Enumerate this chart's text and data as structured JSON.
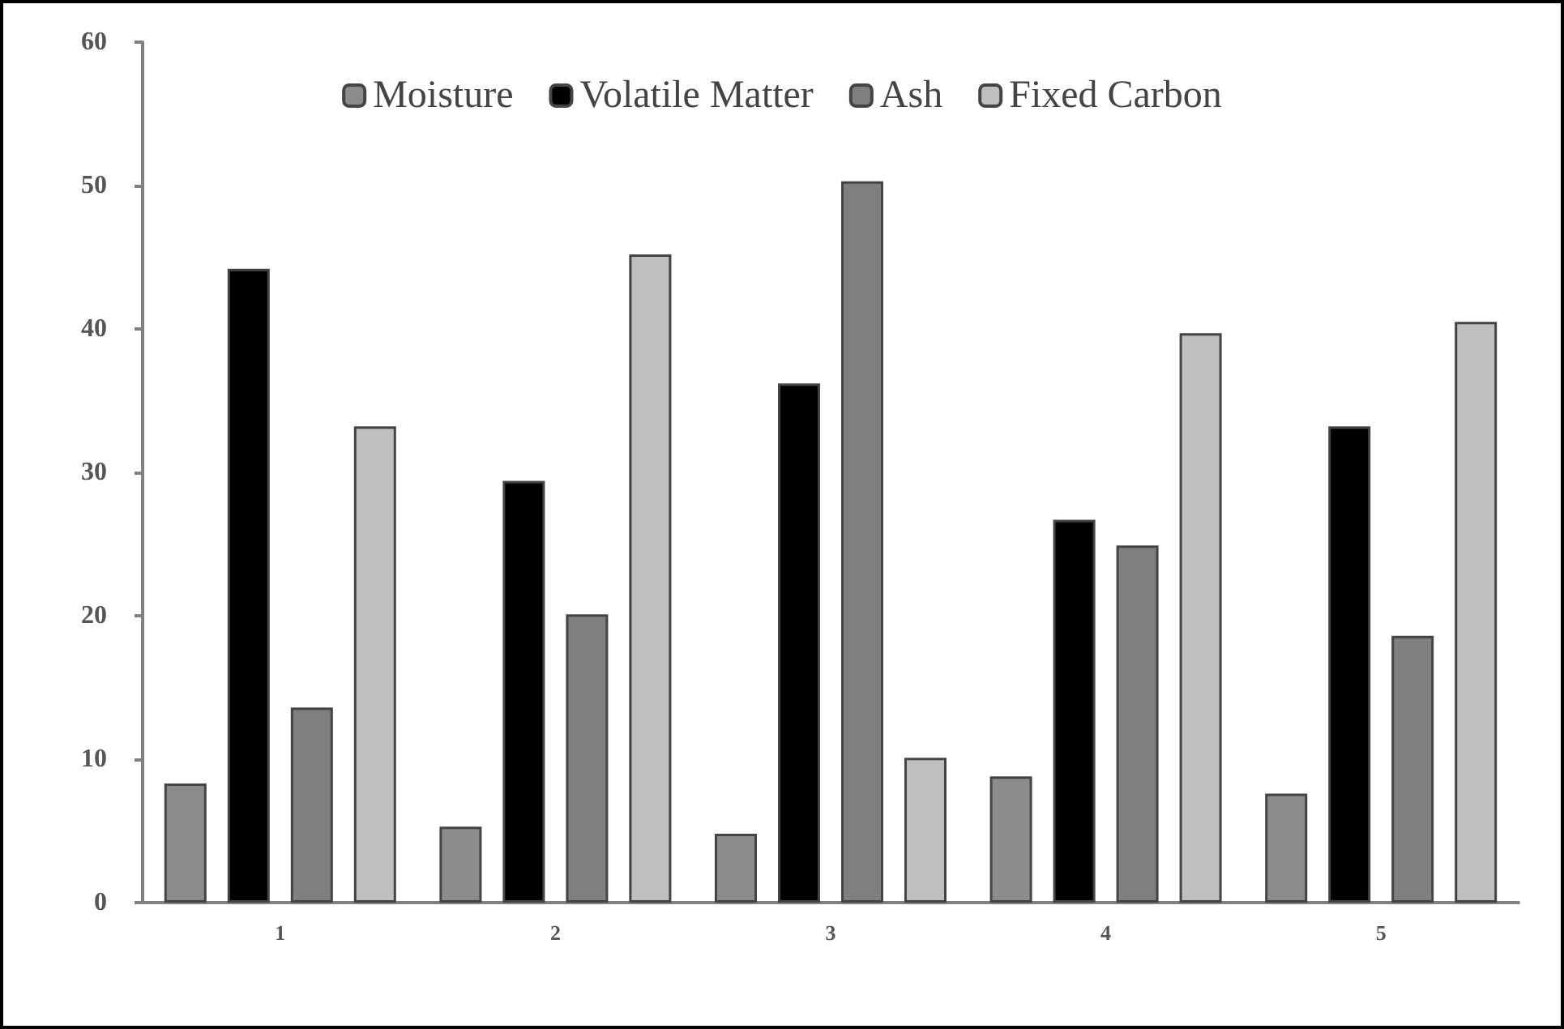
{
  "chart_data": {
    "type": "bar",
    "categories": [
      "1",
      "2",
      "3",
      "4",
      "5"
    ],
    "series": [
      {
        "name": "Moisture",
        "color": "#8c8c8c",
        "values": [
          8.3,
          5.3,
          4.8,
          8.8,
          7.6
        ]
      },
      {
        "name": "Volatile Matter",
        "color": "#000000",
        "values": [
          44.2,
          29.4,
          36.2,
          26.7,
          33.2
        ]
      },
      {
        "name": "Ash",
        "color": "#7f7f7f",
        "values": [
          13.6,
          20.1,
          50.3,
          24.9,
          18.6
        ]
      },
      {
        "name": "Fixed Carbon",
        "color": "#bfbfbf",
        "values": [
          33.2,
          45.2,
          10.1,
          39.7,
          40.5
        ]
      }
    ],
    "ylim": [
      0,
      60
    ],
    "yticks": [
      0,
      10,
      20,
      30,
      40,
      50,
      60
    ],
    "grid": false,
    "legend": "top"
  }
}
